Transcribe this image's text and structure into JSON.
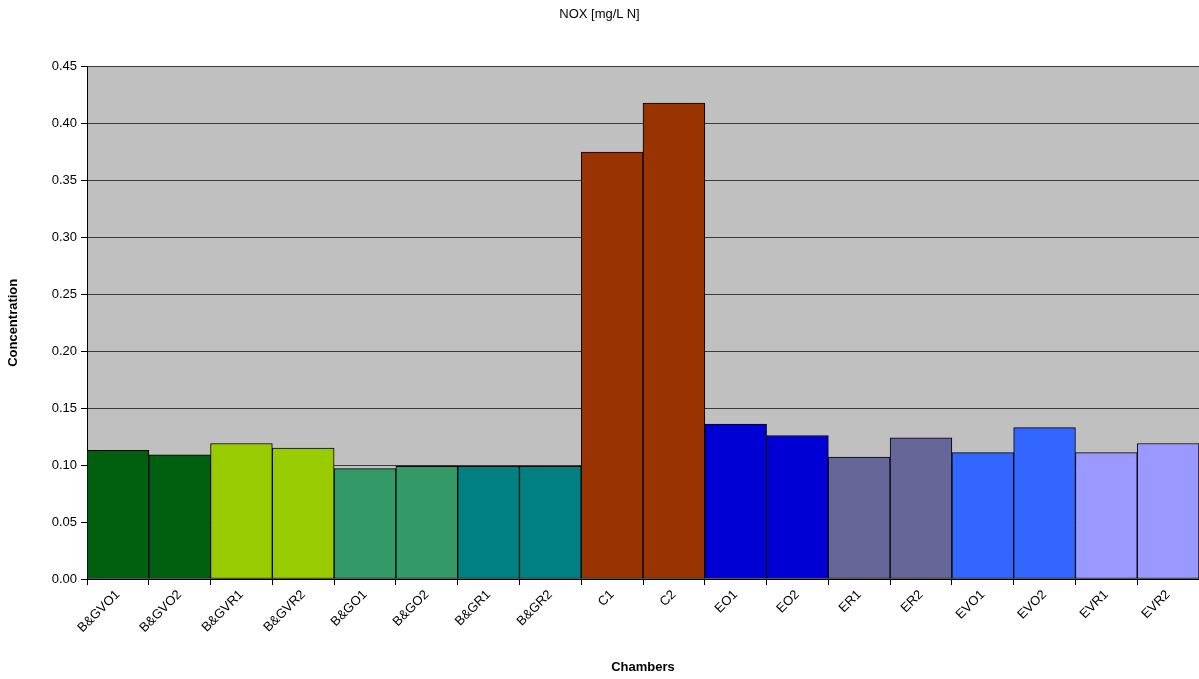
{
  "chart_data": {
    "type": "bar",
    "title": "NOX [mg/L N]",
    "xlabel": "Chambers",
    "ylabel": "Concentration",
    "categories": [
      "B&GVO1",
      "B&GVO2",
      "B&GVR1",
      "B&GVR2",
      "B&GO1",
      "B&GO2",
      "B&GR1",
      "B&GR2",
      "C1",
      "C2",
      "EO1",
      "EO2",
      "ER1",
      "ER2",
      "EVO1",
      "EVO2",
      "EVR1",
      "EVR2"
    ],
    "values": [
      0.113,
      0.109,
      0.119,
      0.115,
      0.097,
      0.099,
      0.099,
      0.099,
      0.375,
      0.418,
      0.136,
      0.126,
      0.107,
      0.124,
      0.111,
      0.133,
      0.111,
      0.119
    ],
    "colors": [
      "#006010",
      "#006010",
      "#99cc00",
      "#99cc00",
      "#339966",
      "#339966",
      "#008080",
      "#008080",
      "#993300",
      "#993300",
      "#0000d4",
      "#0000d4",
      "#666699",
      "#666699",
      "#3366ff",
      "#3366ff",
      "#9999ff",
      "#9999ff"
    ],
    "ylim": [
      0,
      0.45
    ],
    "yticks": [
      {
        "value": 0,
        "label": "0.00"
      },
      0.05,
      {
        "value": 0.1,
        "label": "0.10"
      },
      0.15,
      {
        "value": 0.2,
        "label": "0.20"
      },
      0.25,
      {
        "value": 0.3,
        "label": "0.30"
      },
      0.35,
      {
        "value": 0.4,
        "label": "0.40"
      },
      0.45
    ],
    "grid": "y"
  }
}
